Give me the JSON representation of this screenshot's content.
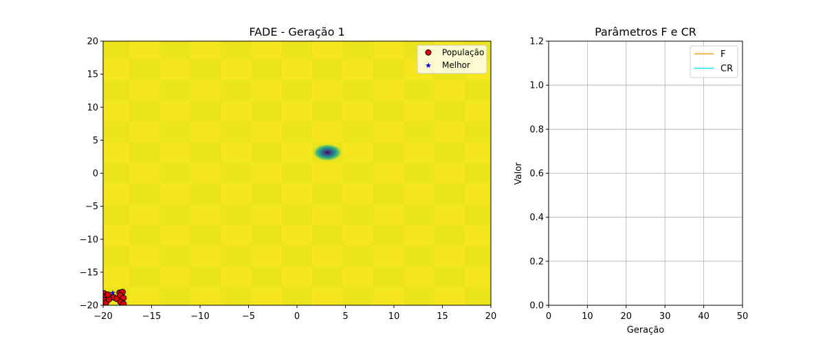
{
  "chart_data": [
    {
      "type": "heatmap",
      "title": "FADE - Geração 1",
      "xlabel": "",
      "ylabel": "",
      "xlim": [
        -20,
        20
      ],
      "ylim": [
        -20,
        20
      ],
      "xticks": [
        -20,
        -15,
        -10,
        -5,
        0,
        5,
        10,
        15,
        20
      ],
      "yticks": [
        -20,
        -15,
        -10,
        -5,
        0,
        5,
        10,
        15,
        20
      ],
      "colormap": "viridis",
      "surface": {
        "background_colors": [
          "#f6e61e",
          "#ebe31c"
        ],
        "checker_period_x": 3.14,
        "checker_period_y": 3.14,
        "minimum": {
          "x": 3.14,
          "y": 3.14,
          "radius": 1.6
        },
        "center_colors": [
          "#440154",
          "#3b528b",
          "#21918c",
          "#5ec962",
          "#fde725"
        ]
      },
      "legend": {
        "position": "top-right",
        "entries": [
          "População",
          "Melhor"
        ]
      },
      "series": [
        {
          "name": "População",
          "marker": "circle",
          "color": "#e00000",
          "edge": "#000000",
          "points": [
            [
              -19.9,
              -18.2
            ],
            [
              -19.8,
              -18.7
            ],
            [
              -19.9,
              -19.2
            ],
            [
              -19.7,
              -19.6
            ],
            [
              -19.4,
              -19.1
            ],
            [
              -18.9,
              -18.8
            ],
            [
              -18.6,
              -19.0
            ],
            [
              -18.3,
              -18.1
            ],
            [
              -18.0,
              -18.0
            ],
            [
              -18.2,
              -18.5
            ],
            [
              -17.9,
              -18.9
            ],
            [
              -18.2,
              -19.5
            ],
            [
              -17.9,
              -19.8
            ],
            [
              -19.5,
              -18.4
            ]
          ]
        },
        {
          "name": "Melhor",
          "marker": "star",
          "color": "#0000cc",
          "points": [
            [
              -19.0,
              -18.1
            ]
          ]
        }
      ]
    },
    {
      "type": "line",
      "title": "Parâmetros F e CR",
      "xlabel": "Geração",
      "ylabel": "Valor",
      "xlim": [
        0,
        50
      ],
      "ylim": [
        0,
        1.2
      ],
      "xticks": [
        0,
        10,
        20,
        30,
        40,
        50
      ],
      "yticks": [
        0.0,
        0.2,
        0.4,
        0.6,
        0.8,
        1.0,
        1.2
      ],
      "grid": true,
      "legend": {
        "position": "top-right"
      },
      "series": [
        {
          "name": "F",
          "color": "#ff9f1c",
          "x": [],
          "y": []
        },
        {
          "name": "CR",
          "color": "#17e4f0",
          "x": [],
          "y": []
        }
      ]
    }
  ]
}
